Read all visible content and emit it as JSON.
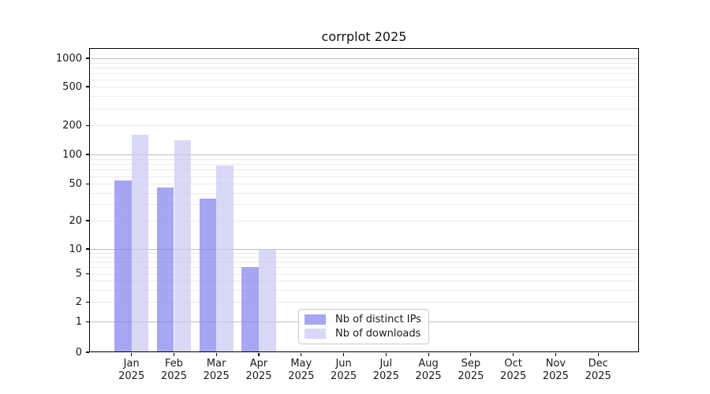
{
  "chart_data": {
    "type": "bar",
    "title": "corrplot 2025",
    "categories": [
      "Jan",
      "Feb",
      "Mar",
      "Apr",
      "May",
      "Jun",
      "Jul",
      "Aug",
      "Sep",
      "Oct",
      "Nov",
      "Dec"
    ],
    "category_year": "2025",
    "series": [
      {
        "name": "Nb of distinct IPs",
        "color": "#8080ef",
        "alpha": 0.7,
        "values": [
          54,
          46,
          35,
          6,
          null,
          null,
          null,
          null,
          null,
          null,
          null,
          null
        ]
      },
      {
        "name": "Nb of downloads",
        "color": "#c9c8f4",
        "alpha": 0.7,
        "values": [
          160,
          140,
          77,
          10,
          null,
          null,
          null,
          null,
          null,
          null,
          null,
          null
        ]
      }
    ],
    "xlabel": "",
    "ylabel": "",
    "yscale": "log-like",
    "y_ticks": [
      0,
      1,
      2,
      5,
      10,
      20,
      50,
      100,
      200,
      500,
      1000
    ],
    "ylim": [
      0,
      1260
    ],
    "grid": true,
    "gridline_major_color": "#bdbdbd",
    "gridline_minor_color": "#ebebeb",
    "legend_position": "lower-center"
  }
}
